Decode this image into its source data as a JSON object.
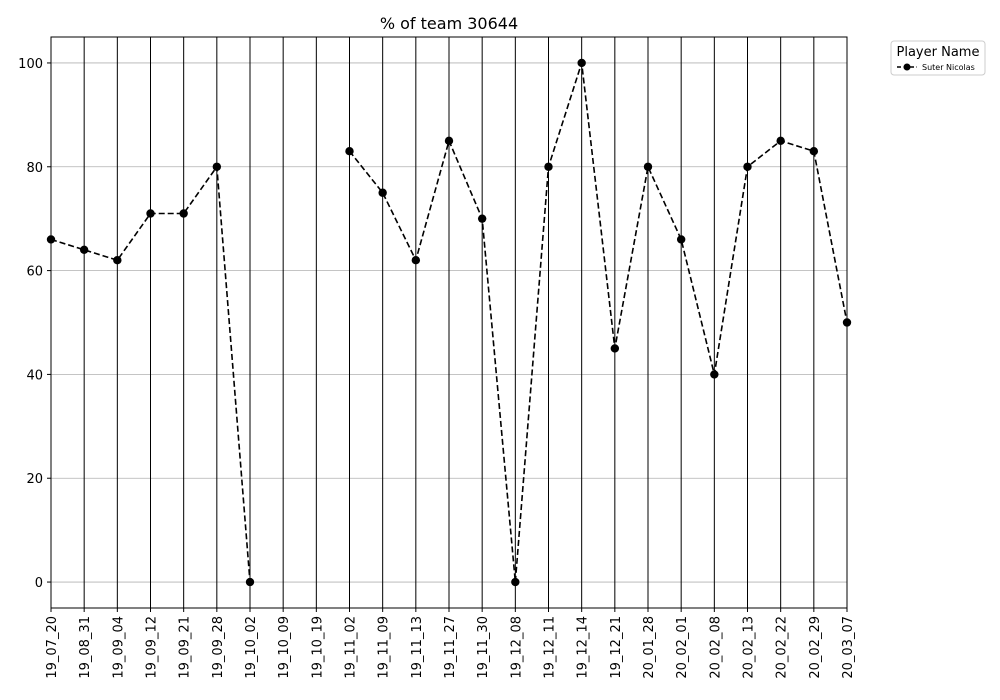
{
  "chart_data": {
    "type": "line",
    "title": "% of team 30644",
    "xlabel": "",
    "ylabel": "",
    "ylim": [
      -5,
      105
    ],
    "yticks": [
      0,
      20,
      40,
      60,
      80,
      100
    ],
    "grid": "horizontal",
    "x": [
      "19_07_20",
      "19_08_31",
      "19_09_04",
      "19_09_12",
      "19_09_21",
      "19_09_28",
      "19_10_02",
      "19_10_09",
      "19_10_19",
      "19_11_02",
      "19_11_09",
      "19_11_13",
      "19_11_27",
      "19_11_30",
      "19_12_08",
      "19_12_11",
      "19_12_14",
      "19_12_21",
      "20_01_28",
      "20_02_01",
      "20_02_08",
      "20_02_13",
      "20_02_22",
      "20_02_29",
      "20_03_07"
    ],
    "series": [
      {
        "name": "Suter Nicolas",
        "color": "#000000",
        "linestyle": "dashed",
        "marker": "circle",
        "values": [
          66,
          64,
          62,
          71,
          71,
          80,
          0,
          null,
          null,
          83,
          75,
          62,
          85,
          70,
          0,
          80,
          100,
          45,
          80,
          66,
          40,
          80,
          85,
          83,
          50
        ]
      }
    ],
    "legend": {
      "title": "Player Name",
      "placement": "outside-top-right"
    }
  }
}
